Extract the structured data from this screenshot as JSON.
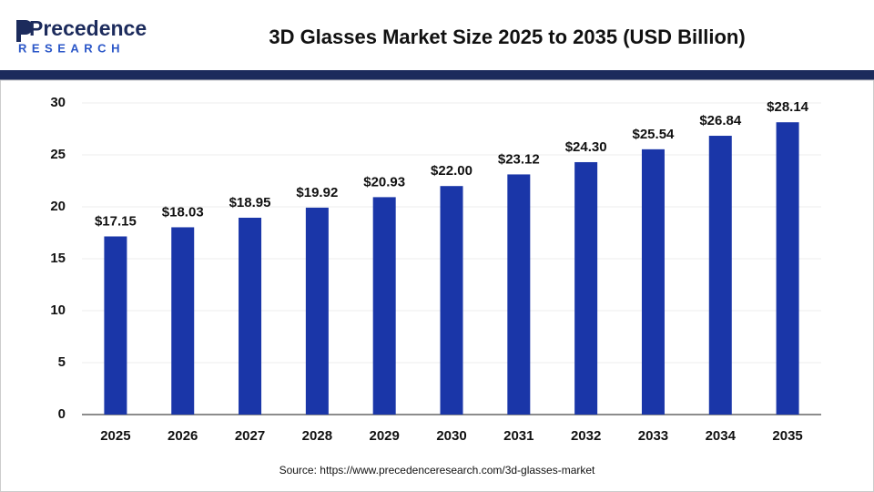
{
  "brand": {
    "name": "Precedence",
    "sub": "RESEARCH"
  },
  "chart_data": {
    "type": "bar",
    "title": "3D Glasses Market Size 2025 to 2035 (USD Billion)",
    "categories": [
      "2025",
      "2026",
      "2027",
      "2028",
      "2029",
      "2030",
      "2031",
      "2032",
      "2033",
      "2034",
      "2035"
    ],
    "values": [
      17.15,
      18.03,
      18.95,
      19.92,
      20.93,
      22.0,
      23.12,
      24.3,
      25.54,
      26.84,
      28.14
    ],
    "value_labels": [
      "$17.15",
      "$18.03",
      "$18.95",
      "$19.92",
      "$20.93",
      "$22.00",
      "$23.12",
      "$24.30",
      "$25.54",
      "$26.84",
      "$28.14"
    ],
    "color": "#1a36a8",
    "ylim": [
      0,
      30
    ],
    "yticks": [
      0,
      5,
      10,
      15,
      20,
      25,
      30
    ],
    "grid": true,
    "source": "Source: https://www.precedenceresearch.com/3d-glasses-market"
  }
}
